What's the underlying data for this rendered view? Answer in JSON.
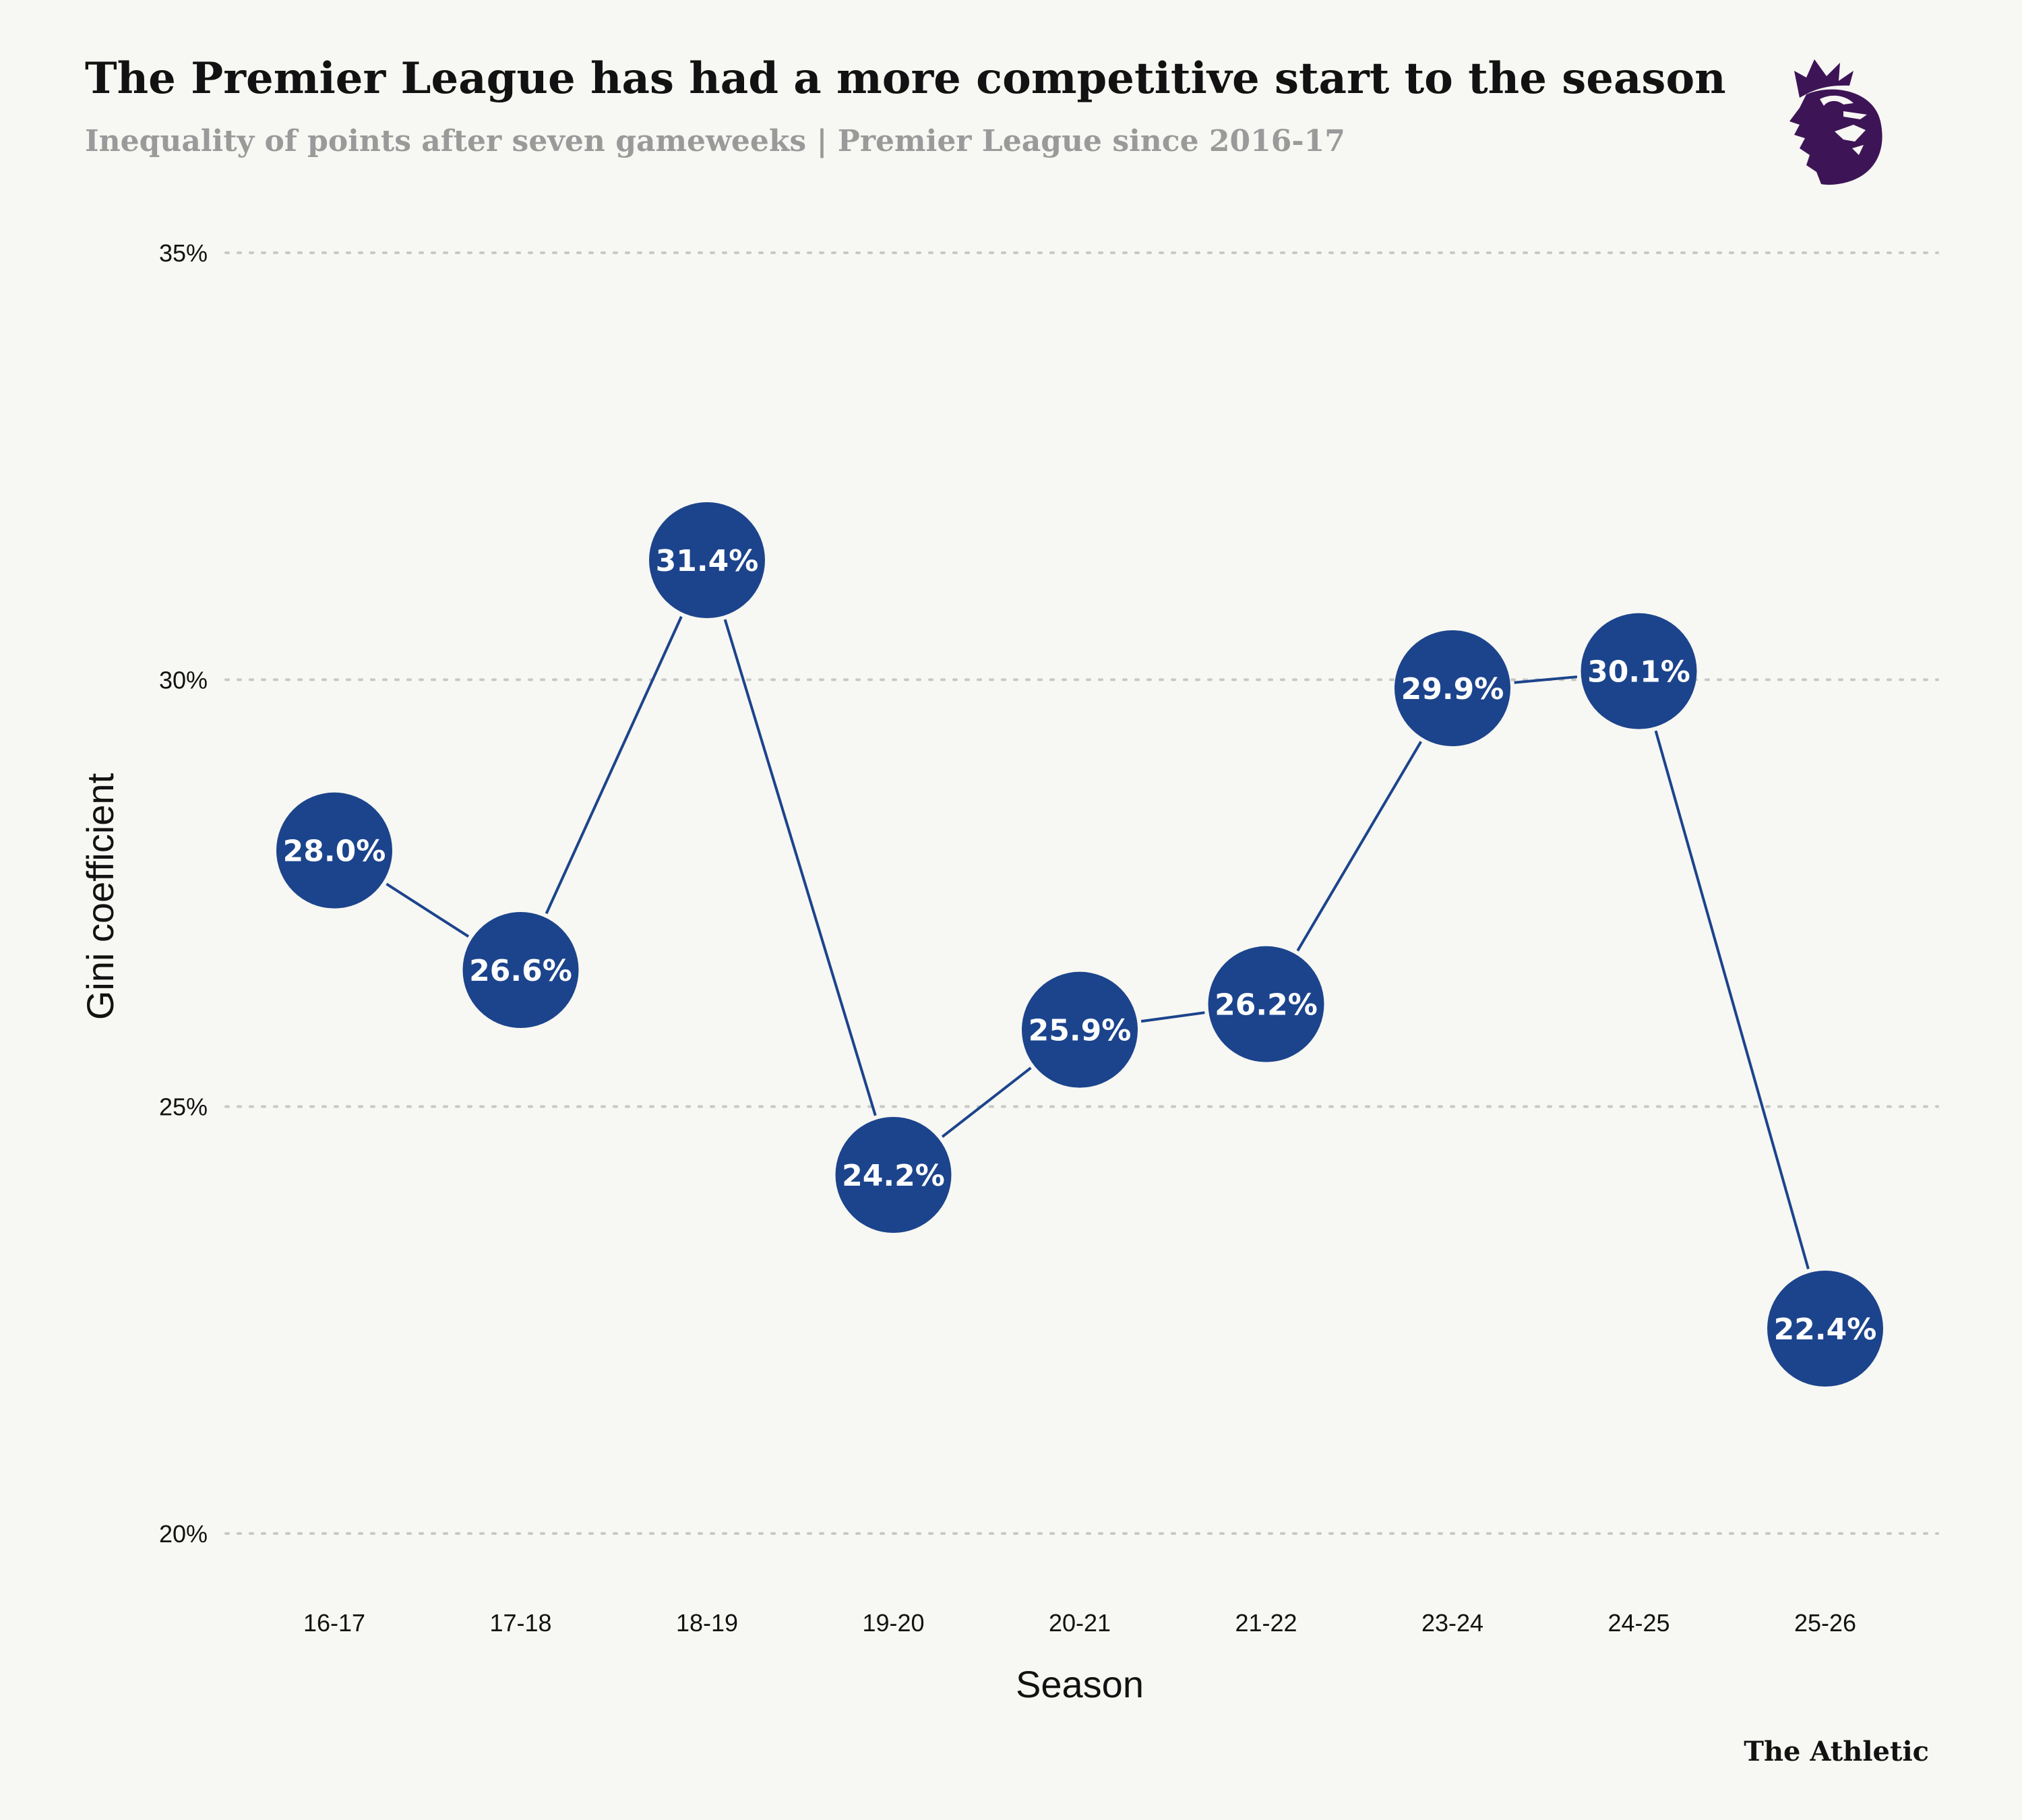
{
  "header": {
    "title": "The Premier League has had a more competitive start to the season",
    "subtitle": "Inequality of points after seven gameweeks | Premier League since 2016-17",
    "logo": "premier-league-lion-logo"
  },
  "footer": {
    "brand": "The Athletic"
  },
  "colors": {
    "point": "#1c448c",
    "line": "#1c448c",
    "logo": "#3d1556",
    "background": "#f7f7f3",
    "grid": "#c8c8c4"
  },
  "chart_data": {
    "type": "line",
    "title": "The Premier League has had a more competitive start to the season",
    "xlabel": "Season",
    "ylabel": "Gini coefficient",
    "categories": [
      "16-17",
      "17-18",
      "18-19",
      "19-20",
      "20-21",
      "21-22",
      "23-24",
      "24-25",
      "25-26"
    ],
    "values": [
      28.0,
      26.6,
      31.4,
      24.2,
      25.9,
      26.2,
      29.9,
      30.1,
      22.4
    ],
    "data_labels": [
      "28.0%",
      "26.6%",
      "31.4%",
      "24.2%",
      "25.9%",
      "26.2%",
      "29.9%",
      "30.1%",
      "22.4%"
    ],
    "ylim": [
      20,
      35
    ],
    "yticks": [
      20,
      25,
      30,
      35
    ],
    "ytick_labels": [
      "20%",
      "25%",
      "30%",
      "35%"
    ],
    "grid": "horizontal dotted",
    "legend": "none"
  }
}
